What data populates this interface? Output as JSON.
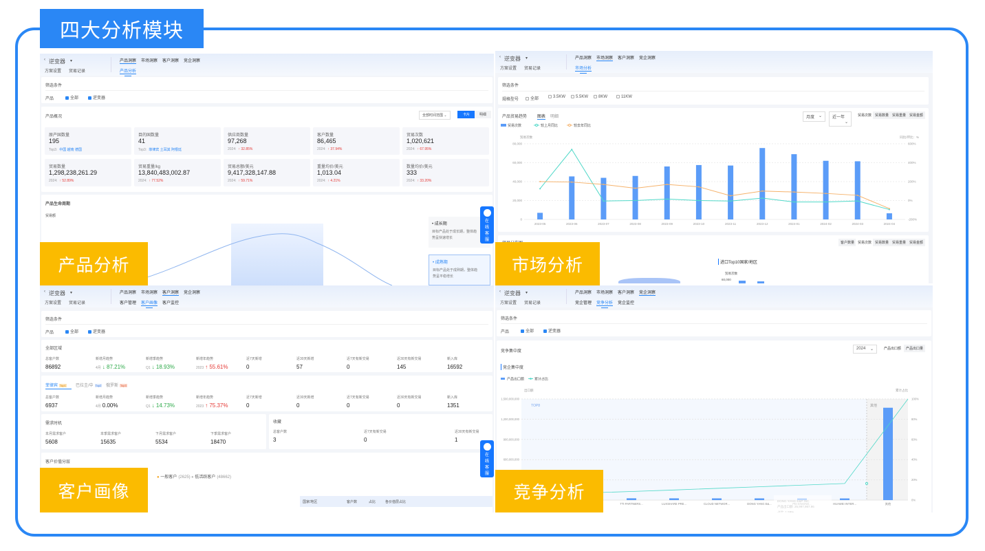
{
  "title": "四大分析模块",
  "labels": {
    "product": "产品分析",
    "market": "市场分析",
    "customer": "客户画像",
    "competition": "竞争分析"
  },
  "common": {
    "app_name": "逆变器",
    "plan_settings": "方案设置",
    "usage_log": "贸易记录",
    "top_tabs": [
      "产品洞察",
      "市场洞察",
      "客户洞察",
      "竞企洞察"
    ],
    "filter_title": "筛选条件",
    "product_label": "产品",
    "filter_all": "全部",
    "filter_inverter": "逆变器",
    "chat": [
      "在",
      "线",
      "客",
      "服"
    ]
  },
  "product": {
    "subtab": "产品分析",
    "overview_title": "产品概况",
    "time_select": "全部时间范围",
    "view_card": "卡片",
    "view_detail": "明细",
    "stats": [
      {
        "label": "原产国数量",
        "value": "195",
        "sub_prefix": "Top3:",
        "sub": "中国 越南 德国",
        "tone": "link"
      },
      {
        "label": "目的国数量",
        "value": "41",
        "sub_prefix": "Top3:",
        "sub": "菲律宾 土耳其 阿根廷",
        "tone": "link"
      },
      {
        "label": "供应商数量",
        "value": "97,268",
        "sub_prefix": "2024:",
        "sub": "↑ 32.85%",
        "tone": "up"
      },
      {
        "label": "客户数量",
        "value": "86,465",
        "sub_prefix": "2024:",
        "sub": "↑ 37.94%",
        "tone": "up"
      },
      {
        "label": "贸易次数",
        "value": "1,020,621",
        "sub_prefix": "2024:",
        "sub": "↑ 67.95%",
        "tone": "up"
      },
      {
        "label": "贸易数量",
        "value": "1,298,238,261.29",
        "sub_prefix": "2024:",
        "sub": "↑ 52.89%",
        "tone": "up"
      },
      {
        "label": "贸易重量/kg",
        "value": "13,840,483,002.87",
        "sub_prefix": "2024:",
        "sub": "↑ 77.52%",
        "tone": "up"
      },
      {
        "label": "贸易总额/美元",
        "value": "9,417,328,147.88",
        "sub_prefix": "2024:",
        "sub": "↑ 59.71%",
        "tone": "up"
      },
      {
        "label": "重量均价/美元",
        "value": "1,013.04",
        "sub_prefix": "2024:",
        "sub": "↑ 4.21%",
        "tone": "up"
      },
      {
        "label": "数量均价/美元",
        "value": "333",
        "sub_prefix": "2024:",
        "sub": "↑ 33.20%",
        "tone": "up"
      }
    ],
    "lifecycle_title": "产品生命周期",
    "lifecycle_axis": "贸易额",
    "stages": [
      {
        "name": "成长期",
        "desc1": "目标产品处于成长期，整体趋",
        "desc2": "势呈快速增长",
        "active": false
      },
      {
        "name": "成熟期",
        "desc1": "目标产品处于成熟期，整体趋",
        "desc2": "势呈平稳增长",
        "active": true
      }
    ]
  },
  "market": {
    "subtab": "市场分析",
    "filter_label": "规格型号",
    "specs": [
      "全部",
      "3.5KW",
      "5.5KW",
      "8KW",
      "11KW"
    ],
    "trend_title": "产品贸易趋势",
    "view_tabs": [
      "图表",
      "明细"
    ],
    "period_select": "月度",
    "range_select": "近一年",
    "metric_buttons": [
      "贸易次数",
      "贸易数量",
      "贸易重量",
      "贸易金额"
    ],
    "dist_title": "贸易分布图",
    "dist_buttons": [
      "客户数量",
      "贸易次数",
      "贸易数量",
      "贸易重量",
      "贸易金额"
    ],
    "top10_title": "进口Top10国家/地区",
    "top10_axis": "贸易次数",
    "top10_tick": "60,000",
    "chart_data": {
      "type": "bar",
      "xlabel": "",
      "ylabel": "贸易次数",
      "y2label": "同比/环比：%",
      "categories": [
        "2023-05",
        "2023-06",
        "2023-07",
        "2023-08",
        "2023-09",
        "2023-10",
        "2023-11",
        "2023-12",
        "2024-01",
        "2024-02",
        "2024-03",
        "2024-04"
      ],
      "ylim": [
        0,
        80000
      ],
      "yticks": [
        "0",
        "20,000",
        "40,000",
        "60,000",
        "80,000"
      ],
      "y2lim": [
        -200,
        600
      ],
      "y2ticks": [
        "-200%",
        "0%",
        "200%",
        "400%",
        "600%"
      ],
      "series": [
        {
          "name": "贸易次数",
          "type": "bar",
          "axis": "left",
          "color": "#5b9cf8",
          "values": [
            7000,
            45500,
            44000,
            46000,
            56000,
            57500,
            57000,
            75500,
            69000,
            62000,
            61500,
            6500
          ]
        },
        {
          "name": "较上月同比",
          "type": "line",
          "axis": "right",
          "color": "#4fd8c8",
          "values": [
            125,
            540,
            -5,
            0,
            15,
            0,
            -5,
            25,
            -15,
            -15,
            -5,
            -95
          ]
        },
        {
          "name": "较去年同比",
          "type": "line",
          "axis": "right",
          "color": "#f5b26b",
          "values": [
            200,
            195,
            170,
            130,
            170,
            145,
            50,
            100,
            90,
            75,
            55,
            -85
          ]
        }
      ],
      "grid": true,
      "legend": "top-left"
    }
  },
  "customer": {
    "subtabs": [
      "客户管理",
      "客户画像",
      "客户监控"
    ],
    "region_title": "全部区域",
    "stat_labels": [
      "总客户数",
      "新增月趋势",
      "新增季趋势",
      "新增年趋势",
      "近7天新增",
      "近30天新增",
      "近7天有新交易",
      "近30天有新交易",
      "新入库"
    ],
    "all_region": [
      {
        "value": "86892"
      },
      {
        "prefix": "4月",
        "value": "↓ 87.21%",
        "tone": "down"
      },
      {
        "prefix": "Q1",
        "value": "↓ 18.93%",
        "tone": "down"
      },
      {
        "prefix": "2023",
        "value": "↑ 55.61%",
        "tone": "up"
      },
      {
        "value": "0"
      },
      {
        "value": "57"
      },
      {
        "value": "0"
      },
      {
        "value": "145"
      },
      {
        "value": "16592"
      }
    ],
    "country_tabs": [
      {
        "name": "菲律宾",
        "badge": "Top1"
      },
      {
        "name": "巴拉圭/中",
        "badge": "Top2"
      },
      {
        "name": "俄罗斯",
        "badge": "Top3"
      }
    ],
    "country": [
      {
        "value": "6937"
      },
      {
        "prefix": "4月",
        "value": "0.00%",
        "tone": "flat"
      },
      {
        "prefix": "Q1",
        "value": "↓ 14.73%",
        "tone": "down"
      },
      {
        "prefix": "2023",
        "value": "↑ 75.37%",
        "tone": "up"
      },
      {
        "value": "0"
      },
      {
        "value": "0"
      },
      {
        "value": "0"
      },
      {
        "value": "0"
      },
      {
        "value": "1351"
      }
    ],
    "demand_title": "需求时机",
    "demand": [
      {
        "label": "本月需求客户",
        "value": "5608"
      },
      {
        "label": "本季需求客户",
        "value": "15635"
      },
      {
        "label": "下月需求客户",
        "value": "5534"
      },
      {
        "label": "下季需求客户",
        "value": "18470"
      }
    ],
    "fav_title": "收藏",
    "fav": [
      {
        "label": "总客户数",
        "value": "3"
      },
      {
        "label": "近7天有新交易",
        "value": "0"
      },
      {
        "label": "近30天有新交易",
        "value": "1"
      }
    ],
    "value_title": "客户价值分层",
    "value_legend": [
      {
        "name": "一般客户",
        "count": "(2625)",
        "color": "#f5a623"
      },
      {
        "name": "低活跃客户",
        "count": "(48662)",
        "color": "#bbb"
      }
    ],
    "table_headers": [
      "国家/地区",
      "客户数",
      "占比",
      "各价值层占比"
    ]
  },
  "competition": {
    "subtabs": [
      "竞企管理",
      "竞争分析",
      "竞企监控"
    ],
    "conc_title": "竞争集中度",
    "year_select": "2024",
    "buttons": [
      "产品出口额",
      "产品出口量"
    ],
    "sub_title": "竞企集中度",
    "top_label": "TOP8",
    "other_label": "其他",
    "tooltip": {
      "title": "DONG YANG E&P INC.",
      "line1": "产品出口额:  25,997,987.96",
      "line2": "占比:  1.59%"
    },
    "chart_data": {
      "type": "bar",
      "ylabel": "出口额",
      "y2label": "累计占比",
      "categories": [
        "TTI PARTNERS...",
        "LUXSHARE PRE...",
        "CLOUD NETWOR...",
        "DONG YANG E&...",
        "PEI ENGINE...",
        "HUAWEI INTER...",
        "其他"
      ],
      "ylim": [
        0,
        1500000000
      ],
      "yticks": [
        "0",
        "300,000,000",
        "600,000,000",
        "900,000,000",
        "1,200,000,000",
        "1,500,000,000"
      ],
      "y2lim": [
        0,
        100
      ],
      "y2ticks": [
        "0%",
        "20%",
        "40%",
        "60%",
        "80%",
        "100%"
      ],
      "series": [
        {
          "name": "产品出口额",
          "type": "bar",
          "color": "#5b9cf8",
          "values": [
            27000000,
            26500000,
            26000000,
            25997987.96,
            25500000,
            25000000,
            1370000000
          ]
        },
        {
          "name": "累计占比",
          "type": "line",
          "color": "#4fd8c8",
          "values": [
            8.5,
            10,
            11.6,
            13.2,
            14.8,
            16.4,
            100
          ]
        }
      ],
      "grid": true,
      "legend": "top-left"
    }
  }
}
